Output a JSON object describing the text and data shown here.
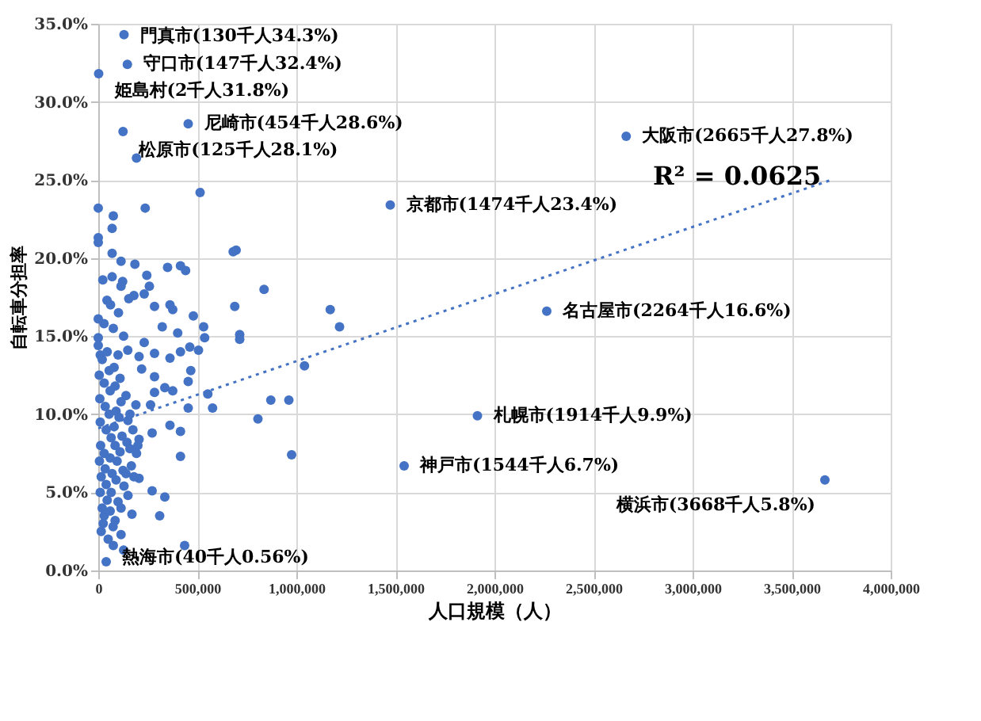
{
  "chart_data": {
    "type": "scatter",
    "xlabel": "人口規模（人）",
    "ylabel": "自転車分担率",
    "xlim": [
      0,
      4000000
    ],
    "ylim": [
      0,
      35
    ],
    "xticks": [
      0,
      {
        "value": 500000,
        "label": "500,000"
      },
      {
        "value": 1000000,
        "label": "1,000,000"
      },
      {
        "value": 1500000,
        "label": "1,500,000"
      },
      {
        "value": 2000000,
        "label": "2,000,000"
      },
      {
        "value": 2500000,
        "label": "2,500,000"
      },
      {
        "value": 3000000,
        "label": "3,000,000"
      },
      {
        "value": 3500000,
        "label": "3,500,000"
      },
      {
        "value": 4000000,
        "label": "4,000,000"
      }
    ],
    "yticks": [
      {
        "value": 0,
        "label": "0.0%"
      },
      {
        "value": 5,
        "label": "5.0%"
      },
      {
        "value": 10,
        "label": "10.0%"
      },
      {
        "value": 15,
        "label": "15.0%"
      },
      {
        "value": 20,
        "label": "20.0%"
      },
      {
        "value": 25,
        "label": "25.0%"
      },
      {
        "value": 30,
        "label": "30.0%"
      },
      {
        "value": 35,
        "label": "35.0%"
      }
    ],
    "grid": true,
    "series": [
      {
        "color": "#4472c4",
        "marker": "circle",
        "x": [
          130000,
          147000,
          2000,
          454000,
          125000,
          2665000,
          1474000,
          2264000,
          1914000,
          1544000,
          3668000,
          40000,
          514000,
          0,
          237000,
          76000,
          70000,
          0,
          0,
          70000,
          696000,
          681000,
          115000,
          185000,
          350000,
          415000,
          441000,
          245000,
          23000,
          70000,
          123000,
          115000,
          258000,
          232000,
          180000,
          154000,
          837000,
          44000,
          62000,
          102000,
          284000,
          362000,
          376000,
          689000,
          1171000,
          1218000,
          480000,
          0,
          29000,
          76000,
          128000,
          323000,
          401000,
          532000,
          537000,
          714000,
          714000,
          232000,
          149000,
          206000,
          284000,
          362000,
          415000,
          462000,
          506000,
          0,
          0,
          10000,
          467000,
          1041000,
          219000,
          284000,
          336000,
          376000,
          454000,
          553000,
          577000,
          871000,
          962000,
          806000,
          454000,
          264000,
          284000,
          362000,
          415000,
          272000,
          206000,
          193000,
          167000,
          206000,
          415000,
          976000,
          272000,
          336000,
          310000,
          436000,
          128000,
          76000,
          115000,
          193000,
          5000,
          8000,
          10000,
          12000,
          6000,
          15000,
          10000,
          20000,
          25000,
          15000,
          30000,
          35000,
          40000,
          30000,
          35000,
          40000,
          45000,
          30000,
          50000,
          55000,
          60000,
          55000,
          65000,
          60000,
          70000,
          65000,
          60000,
          75000,
          80000,
          85000,
          90000,
          80000,
          85000,
          95000,
          90000,
          100000,
          85000,
          110000,
          115000,
          105000,
          120000,
          110000,
          125000,
          130000,
          115000,
          140000,
          150000,
          145000,
          160000,
          175000,
          160000,
          140000,
          150000,
          170000,
          190000,
          200000,
          180000,
          20000,
          45000,
          100000
        ],
        "values": [
          34.3,
          32.4,
          31.8,
          28.6,
          28.1,
          27.8,
          23.4,
          16.6,
          9.9,
          6.7,
          5.8,
          0.56,
          24.2,
          23.2,
          23.2,
          22.7,
          21.9,
          21.3,
          21.0,
          20.3,
          20.5,
          20.4,
          19.8,
          19.6,
          19.4,
          19.5,
          19.2,
          18.9,
          18.6,
          18.8,
          18.5,
          18.2,
          18.2,
          17.7,
          17.6,
          17.4,
          18.0,
          17.3,
          17.0,
          16.5,
          16.9,
          17.0,
          16.7,
          16.9,
          16.7,
          15.6,
          16.3,
          16.1,
          15.8,
          15.5,
          15.0,
          15.6,
          15.2,
          15.6,
          14.9,
          15.1,
          14.8,
          14.6,
          14.1,
          13.7,
          13.9,
          13.6,
          14.0,
          14.3,
          14.1,
          14.9,
          14.4,
          13.8,
          12.8,
          13.1,
          12.9,
          12.4,
          11.7,
          11.5,
          12.1,
          11.3,
          10.4,
          10.9,
          10.9,
          9.7,
          10.4,
          10.6,
          11.4,
          9.3,
          8.9,
          8.8,
          8.4,
          7.5,
          6.7,
          5.9,
          7.3,
          7.4,
          5.1,
          4.7,
          3.5,
          1.6,
          1.3,
          1.6,
          2.3,
          26.4,
          12.5,
          11.0,
          9.5,
          8.0,
          7.0,
          6.0,
          5.0,
          4.0,
          3.0,
          2.5,
          12.0,
          10.5,
          9.0,
          7.5,
          6.5,
          5.5,
          4.5,
          3.5,
          2.0,
          12.8,
          11.5,
          10.0,
          8.5,
          7.2,
          6.2,
          5.0,
          3.8,
          2.8,
          13.0,
          11.8,
          10.2,
          9.2,
          8.0,
          7.0,
          5.8,
          4.4,
          3.2,
          12.3,
          10.8,
          9.8,
          8.6,
          7.6,
          6.4,
          5.4,
          4.0,
          11.2,
          9.6,
          8.2,
          10.0,
          9.0,
          7.8,
          6.2,
          4.8,
          3.6,
          10.6,
          8.0,
          6.0,
          13.5,
          14.0,
          13.8
        ]
      },
      {
        "type": "line",
        "color": "#4472c4",
        "line_style": "dotted",
        "x": [
          0,
          3700000
        ],
        "values": [
          9.1,
          25.0
        ]
      }
    ],
    "annotations": [
      {
        "text": "門真市(130千人34.3%)",
        "x": 130000,
        "y": 34.3
      },
      {
        "text": "守口市(147千人32.4%)",
        "x": 147000,
        "y": 32.4
      },
      {
        "text": "姫島村(2千人31.8%)",
        "x": 2000,
        "y": 31.8
      },
      {
        "text": "尼崎市(454千人28.6%)",
        "x": 454000,
        "y": 28.6
      },
      {
        "text": "松原市(125千人28.1%)",
        "x": 125000,
        "y": 28.1
      },
      {
        "text": "大阪市(2665千人27.8%)",
        "x": 2665000,
        "y": 27.8
      },
      {
        "text": "京都市(1474千人23.4%)",
        "x": 1474000,
        "y": 23.4
      },
      {
        "text": "名古屋市(2264千人16.6%)",
        "x": 2264000,
        "y": 16.6
      },
      {
        "text": "札幌市(1914千人9.9%)",
        "x": 1914000,
        "y": 9.9
      },
      {
        "text": "神戸市(1544千人6.7%)",
        "x": 1544000,
        "y": 6.7
      },
      {
        "text": "横浜市(3668千人5.8%)",
        "x": 3668000,
        "y": 5.8
      },
      {
        "text": "熱海市(40千人0.56%)",
        "x": 40000,
        "y": 0.56
      },
      "R² = 0.0625"
    ]
  }
}
